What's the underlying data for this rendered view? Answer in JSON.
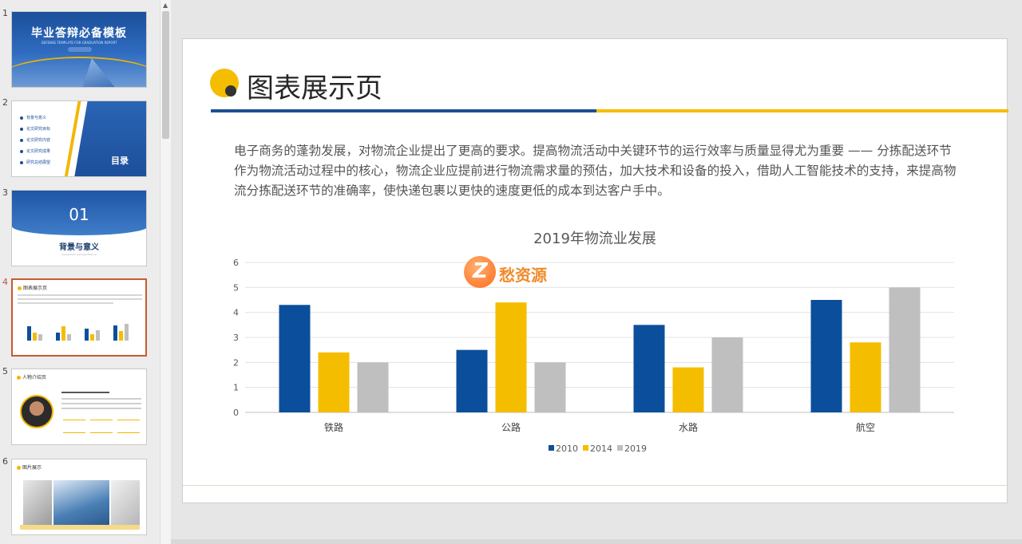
{
  "thumbnails": [
    {
      "number": "1",
      "title": "毕业答辩必备模板",
      "subtitle": "DEFENSE TEMPLATE FOR GRADUATION REPORT"
    },
    {
      "number": "2",
      "items": [
        "背景与意义",
        "论文研究目标",
        "论文研究内容",
        "论文研究成果",
        "研究总结展望"
      ],
      "title": "目录"
    },
    {
      "number": "3",
      "section_number": "01",
      "title": "背景与意义",
      "subtitle": "background and significance"
    },
    {
      "number": "4",
      "title": "图表展示页",
      "active": true
    },
    {
      "number": "5",
      "title": "人物介绍页"
    },
    {
      "number": "6",
      "title": "图片展示"
    }
  ],
  "slide": {
    "title": "图表展示页",
    "body": "电子商务的蓬勃发展，对物流企业提出了更高的要求。提高物流活动中关键环节的运行效率与质量显得尤为重要 —— 分拣配送环节作为物流活动过程中的核心，物流企业应提前进行物流需求量的预估，加大技术和设备的投入，借助人工智能技术的支持，来提高物流分拣配送环节的准确率，使快递包裹以更快的速度更低的成本到达客户手中。",
    "watermark": "愁资源"
  },
  "colors": {
    "blue": "#1d4f91",
    "yellow": "#f5bd00",
    "gray": "#bfbfbf",
    "accent_red": "#c55a33"
  },
  "chart_data": {
    "type": "bar",
    "title": "2019年物流业发展",
    "categories": [
      "铁路",
      "公路",
      "水路",
      "航空"
    ],
    "series": [
      {
        "name": "2010",
        "values": [
          4.3,
          2.5,
          3.5,
          4.5
        ],
        "color": "#0b4f9c"
      },
      {
        "name": "2014",
        "values": [
          2.4,
          4.4,
          1.8,
          2.8
        ],
        "color": "#f5bd00"
      },
      {
        "name": "2019",
        "values": [
          2,
          2,
          3,
          5
        ],
        "color": "#bfbfbf"
      }
    ],
    "ylim": [
      0,
      6
    ],
    "yticks": [
      "0",
      "1",
      "2",
      "3",
      "4",
      "5",
      "6"
    ],
    "grid": true,
    "legend": "bottom"
  }
}
